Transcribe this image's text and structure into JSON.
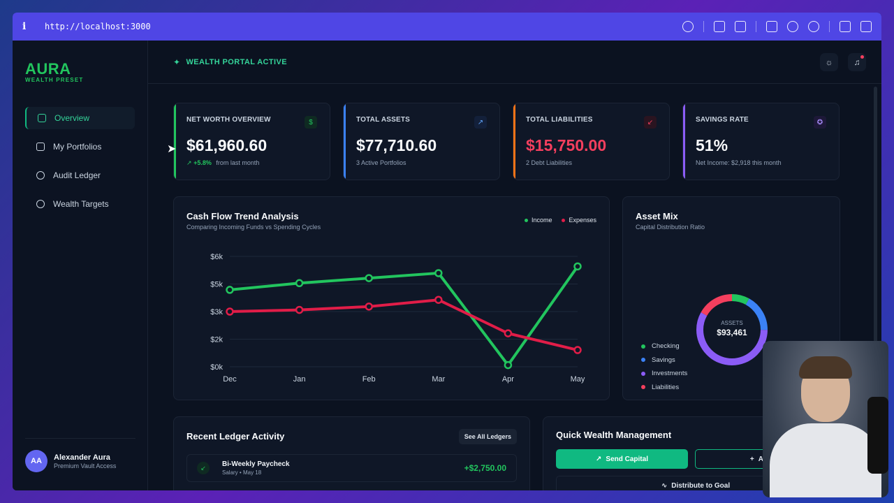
{
  "browser": {
    "url": "http://localhost:3000"
  },
  "brand": {
    "name": "AURA",
    "tagline": "WEALTH PRESET",
    "accent": "#22c55e"
  },
  "sidebar": {
    "items": [
      {
        "label": "Overview",
        "icon": "grid-icon",
        "active": true
      },
      {
        "label": "My Portfolios",
        "icon": "briefcase-icon",
        "active": false
      },
      {
        "label": "Audit Ledger",
        "icon": "history-icon",
        "active": false
      },
      {
        "label": "Wealth Targets",
        "icon": "target-icon",
        "active": false
      }
    ],
    "user": {
      "initials": "AA",
      "name": "Alexander Aura",
      "subtitle": "Premium Vault Access"
    }
  },
  "header": {
    "status": "WEALTH PORTAL ACTIVE"
  },
  "cards": [
    {
      "label": "NET WORTH OVERVIEW",
      "value": "$61,960.60",
      "change": "+5.8%",
      "sub": "from last month",
      "icon": "dollar-icon",
      "accent": "#22c55e",
      "value_color": "#f8fafc"
    },
    {
      "label": "TOTAL ASSETS",
      "value": "$77,710.60",
      "sub": "3 Active Portfolios",
      "icon": "arrow-up-right-icon",
      "accent": "#3b82f6",
      "value_color": "#f8fafc"
    },
    {
      "label": "TOTAL LIABILITIES",
      "value": "$15,750.00",
      "sub": "2 Debt Liabilities",
      "icon": "arrow-down-left-icon",
      "accent": "#f97316",
      "value_color": "#f43f5e"
    },
    {
      "label": "SAVINGS RATE",
      "value": "51%",
      "sub": "Net Income: $2,918 this month",
      "icon": "award-icon",
      "accent": "#8b5cf6",
      "value_color": "#f8fafc"
    }
  ],
  "cashflow": {
    "title": "Cash Flow Trend Analysis",
    "subtitle": "Comparing Incoming Funds vs Spending Cycles",
    "legend": {
      "income": "Income",
      "expenses": "Expenses"
    }
  },
  "chart_data": {
    "type": "line",
    "categories": [
      "Dec",
      "Jan",
      "Feb",
      "Mar",
      "Apr",
      "May"
    ],
    "y_tick_labels": [
      "$0k",
      "$2k",
      "$3k",
      "$5k",
      "$6k"
    ],
    "ylim": [
      0,
      6.6
    ],
    "series": [
      {
        "name": "Income",
        "color": "#22c55e",
        "values": [
          4.6,
          5.0,
          5.3,
          5.6,
          0.1,
          6.0
        ]
      },
      {
        "name": "Expenses",
        "color": "#e11d48",
        "values": [
          3.3,
          3.4,
          3.6,
          4.0,
          2.0,
          1.0
        ]
      }
    ],
    "grid": true
  },
  "asset_mix": {
    "title": "Asset Mix",
    "subtitle": "Capital Distribution Ratio",
    "center_label": "ASSETS",
    "center_value": "$93,461",
    "legend": [
      {
        "label": "Checking",
        "color": "#22c55e"
      },
      {
        "label": "Savings",
        "color": "#3b82f6"
      },
      {
        "label": "Investments",
        "color": "#8b5cf6"
      },
      {
        "label": "Liabilities",
        "color": "#f43f5e"
      }
    ],
    "slices": [
      {
        "name": "Checking",
        "fraction": 0.08,
        "color": "#22c55e"
      },
      {
        "name": "Savings",
        "fraction": 0.17,
        "color": "#3b82f6"
      },
      {
        "name": "Investments",
        "fraction": 0.58,
        "color": "#8b5cf6"
      },
      {
        "name": "Liabilities",
        "fraction": 0.17,
        "color": "#f43f5e"
      }
    ]
  },
  "ledger": {
    "title": "Recent Ledger Activity",
    "see_all": "See All Ledgers",
    "rows": [
      {
        "name": "Bi-Weekly Paycheck",
        "category": "Salary",
        "date": "May 18",
        "amount": "+$2,750.00"
      }
    ]
  },
  "quick": {
    "title": "Quick Wealth Management",
    "send": "Send Capital",
    "add": "Add",
    "distribute": "Distribute to Goal"
  }
}
